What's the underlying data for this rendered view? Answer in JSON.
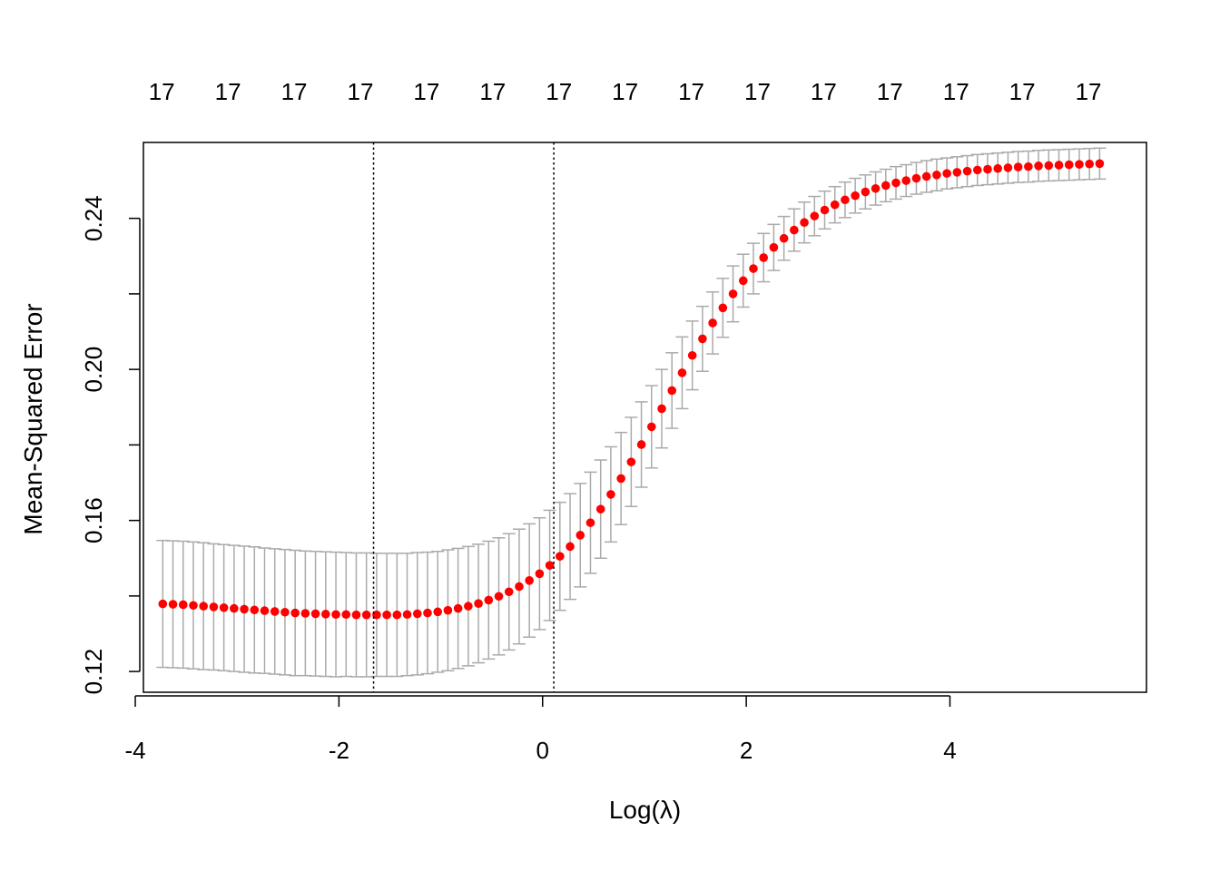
{
  "chart_data": {
    "type": "scatter",
    "xlabel": "Log(λ)",
    "ylabel": "Mean-Squared Error",
    "xlim": [
      -3.92,
      5.93
    ],
    "ylim": [
      0.1145,
      0.2601
    ],
    "x_ticks": [
      -4,
      -2,
      0,
      2,
      4
    ],
    "x_tick_labels": [
      "-4",
      "-2",
      "0",
      "2",
      "4"
    ],
    "y_ticks": [
      0.12,
      0.14,
      0.16,
      0.18,
      0.2,
      0.22,
      0.24
    ],
    "y_tick_labels": [
      "0.12",
      "",
      "0.16",
      "",
      "0.20",
      "",
      "0.24"
    ],
    "top_axis_labels": [
      {
        "x": -3.74,
        "label": "17"
      },
      {
        "x": -3.09,
        "label": "17"
      },
      {
        "x": -2.44,
        "label": "17"
      },
      {
        "x": -1.79,
        "label": "17"
      },
      {
        "x": -1.14,
        "label": "17"
      },
      {
        "x": -0.49,
        "label": "17"
      },
      {
        "x": 0.16,
        "label": "17"
      },
      {
        "x": 0.81,
        "label": "17"
      },
      {
        "x": 1.46,
        "label": "17"
      },
      {
        "x": 2.11,
        "label": "17"
      },
      {
        "x": 2.76,
        "label": "17"
      },
      {
        "x": 3.41,
        "label": "17"
      },
      {
        "x": 4.06,
        "label": "17"
      },
      {
        "x": 4.71,
        "label": "17"
      },
      {
        "x": 5.36,
        "label": "17"
      }
    ],
    "vertical_lines": [
      {
        "name": "lambda.min",
        "x": -1.66
      },
      {
        "name": "lambda.1se",
        "x": 0.11
      }
    ],
    "series": [
      {
        "color": "#ff0000",
        "errorbar_color": "#aaaaaa",
        "x": [
          -3.73,
          -3.63,
          -3.53,
          -3.43,
          -3.33,
          -3.23,
          -3.13,
          -3.03,
          -2.93,
          -2.83,
          -2.73,
          -2.63,
          -2.53,
          -2.43,
          -2.33,
          -2.23,
          -2.13,
          -2.03,
          -1.93,
          -1.83,
          -1.73,
          -1.63,
          -1.53,
          -1.43,
          -1.33,
          -1.23,
          -1.13,
          -1.03,
          -0.93,
          -0.83,
          -0.73,
          -0.63,
          -0.53,
          -0.43,
          -0.33,
          -0.23,
          -0.13,
          -0.03,
          0.07,
          0.17,
          0.27,
          0.37,
          0.47,
          0.57,
          0.67,
          0.77,
          0.87,
          0.97,
          1.07,
          1.17,
          1.27,
          1.37,
          1.47,
          1.57,
          1.67,
          1.77,
          1.87,
          1.97,
          2.07,
          2.17,
          2.27,
          2.37,
          2.47,
          2.57,
          2.67,
          2.77,
          2.87,
          2.97,
          3.07,
          3.17,
          3.27,
          3.37,
          3.47,
          3.57,
          3.67,
          3.77,
          3.87,
          3.97,
          4.07,
          4.17,
          4.27,
          4.37,
          4.47,
          4.57,
          4.67,
          4.77,
          4.87,
          4.97,
          5.07,
          5.17,
          5.27,
          5.37,
          5.47
        ],
        "mse": [
          0.1379,
          0.1378,
          0.1377,
          0.1375,
          0.1373,
          0.1371,
          0.1369,
          0.1367,
          0.1365,
          0.1363,
          0.1361,
          0.1359,
          0.1357,
          0.1355,
          0.1354,
          0.1353,
          0.1352,
          0.1351,
          0.1351,
          0.135,
          0.135,
          0.135,
          0.135,
          0.135,
          0.1351,
          0.1353,
          0.1355,
          0.1358,
          0.1362,
          0.1367,
          0.1373,
          0.138,
          0.1389,
          0.1399,
          0.1411,
          0.1425,
          0.1441,
          0.1459,
          0.1481,
          0.1505,
          0.1531,
          0.1561,
          0.1594,
          0.163,
          0.1669,
          0.1711,
          0.1755,
          0.1801,
          0.1848,
          0.1896,
          0.1944,
          0.1991,
          0.2037,
          0.2081,
          0.2123,
          0.2163,
          0.22,
          0.2235,
          0.2267,
          0.2296,
          0.2323,
          0.2347,
          0.2369,
          0.2389,
          0.2406,
          0.2422,
          0.2436,
          0.2449,
          0.246,
          0.247,
          0.2479,
          0.2487,
          0.2494,
          0.25,
          0.2506,
          0.2511,
          0.2515,
          0.2519,
          0.2522,
          0.2525,
          0.2528,
          0.253,
          0.2532,
          0.2534,
          0.2536,
          0.2537,
          0.2539,
          0.254,
          0.2541,
          0.2542,
          0.2543,
          0.2544,
          0.2545
        ],
        "se": [
          0.0168,
          0.0168,
          0.0168,
          0.0168,
          0.0168,
          0.0167,
          0.0167,
          0.0167,
          0.0167,
          0.0167,
          0.0166,
          0.0166,
          0.0166,
          0.0166,
          0.0165,
          0.0165,
          0.0165,
          0.0165,
          0.0164,
          0.0164,
          0.0164,
          0.0163,
          0.0163,
          0.0163,
          0.0162,
          0.0162,
          0.0161,
          0.016,
          0.016,
          0.0159,
          0.0158,
          0.0157,
          0.0156,
          0.0155,
          0.0154,
          0.0152,
          0.015,
          0.0148,
          0.0146,
          0.0143,
          0.014,
          0.0137,
          0.0134,
          0.013,
          0.0126,
          0.0122,
          0.0118,
          0.0113,
          0.0109,
          0.0104,
          0.01,
          0.0095,
          0.0091,
          0.0086,
          0.0082,
          0.0078,
          0.0074,
          0.007,
          0.0067,
          0.0064,
          0.0061,
          0.0058,
          0.0056,
          0.0054,
          0.0052,
          0.005,
          0.0048,
          0.0047,
          0.0046,
          0.0045,
          0.0044,
          0.0043,
          0.0043,
          0.0042,
          0.0042,
          0.0042,
          0.0042,
          0.0041,
          0.0041,
          0.0041,
          0.0041,
          0.0041,
          0.0041,
          0.0041,
          0.0041,
          0.0041,
          0.0041,
          0.0041,
          0.0041,
          0.0041,
          0.0041,
          0.0041,
          0.0041
        ]
      }
    ]
  }
}
